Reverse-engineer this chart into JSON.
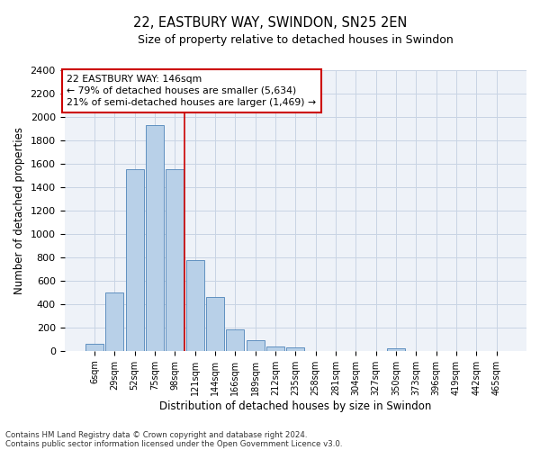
{
  "title": "22, EASTBURY WAY, SWINDON, SN25 2EN",
  "subtitle": "Size of property relative to detached houses in Swindon",
  "xlabel": "Distribution of detached houses by size in Swindon",
  "ylabel": "Number of detached properties",
  "footnote1": "Contains HM Land Registry data © Crown copyright and database right 2024.",
  "footnote2": "Contains public sector information licensed under the Open Government Licence v3.0.",
  "annotation_line1": "22 EASTBURY WAY: 146sqm",
  "annotation_line2": "← 79% of detached houses are smaller (5,634)",
  "annotation_line3": "21% of semi-detached houses are larger (1,469) →",
  "bar_color": "#b8d0e8",
  "bar_edge_color": "#6090c0",
  "grid_color": "#c8d4e4",
  "background_color": "#eef2f8",
  "vline_color": "#cc0000",
  "annotation_box_edgecolor": "#cc0000",
  "title_color": "#000000",
  "categories": [
    "6sqm",
    "29sqm",
    "52sqm",
    "75sqm",
    "98sqm",
    "121sqm",
    "144sqm",
    "166sqm",
    "189sqm",
    "212sqm",
    "235sqm",
    "258sqm",
    "281sqm",
    "304sqm",
    "327sqm",
    "350sqm",
    "373sqm",
    "396sqm",
    "419sqm",
    "442sqm",
    "465sqm"
  ],
  "values": [
    60,
    500,
    1550,
    1930,
    1550,
    780,
    460,
    185,
    90,
    35,
    28,
    0,
    0,
    0,
    0,
    25,
    0,
    0,
    0,
    0,
    0
  ],
  "vline_x": 4.5,
  "ylim": [
    0,
    2400
  ],
  "yticks": [
    0,
    200,
    400,
    600,
    800,
    1000,
    1200,
    1400,
    1600,
    1800,
    2000,
    2200,
    2400
  ]
}
